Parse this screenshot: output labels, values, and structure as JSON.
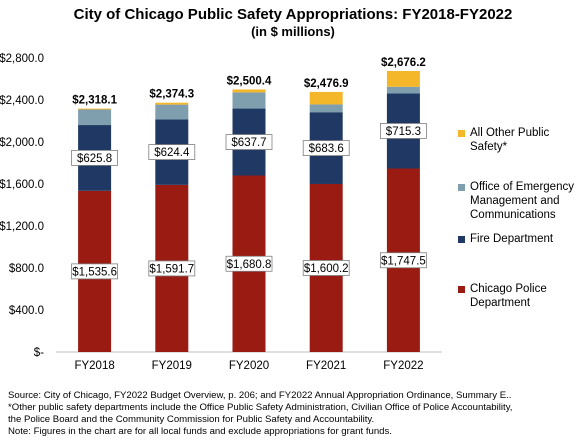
{
  "chart_data": {
    "type": "bar",
    "stacked": true,
    "title": "City of Chicago Public Safety Appropriations: FY2018-FY2022",
    "subtitle": "(in $ millions)",
    "categories": [
      "FY2018",
      "FY2019",
      "FY2020",
      "FY2021",
      "FY2022"
    ],
    "series": [
      {
        "name": "Chicago Police Department",
        "color": "#991B12",
        "values": [
          1535.6,
          1591.7,
          1680.8,
          1600.2,
          1747.5
        ],
        "labels": [
          "$1,535.6",
          "$1,591.7",
          "$1,680.8",
          "$1,600.2",
          "$1,747.5"
        ]
      },
      {
        "name": "Fire Department",
        "color": "#1F3864",
        "values": [
          625.8,
          624.4,
          637.7,
          683.6,
          715.3
        ],
        "labels": [
          "$625.8",
          "$624.4",
          "$637.7",
          "$683.6",
          "$715.3"
        ]
      },
      {
        "name": "Office of Emergency Management and Communications",
        "color": "#7F9FAE",
        "values": [
          148.0,
          140.0,
          154.0,
          74.0,
          63.0
        ]
      },
      {
        "name": "All Other Public Safety*",
        "color": "#F5B72A",
        "values": [
          8.7,
          18.2,
          27.9,
          119.1,
          150.4
        ]
      }
    ],
    "totals": [
      2318.1,
      2374.3,
      2500.4,
      2476.9,
      2676.2
    ],
    "total_labels": [
      "$2,318.1",
      "$2,374.3",
      "$2,500.4",
      "$2,476.9",
      "$2,676.2"
    ],
    "ylim": [
      0,
      2800
    ],
    "yticks": [
      0,
      400,
      800,
      1200,
      1600,
      2000,
      2400,
      2800
    ],
    "ytick_labels": [
      "$-",
      "$400.0",
      "$800.0",
      "$1,200.0",
      "$1,600.0",
      "$2,000.0",
      "$2,400.0",
      "$2,800.0"
    ],
    "legend_position": "right",
    "legend_order": [
      3,
      2,
      1,
      0
    ],
    "legend_labels": [
      [
        "All Other Public",
        "Safety*"
      ],
      [
        "Office of Emergency",
        "Management and",
        "Communications"
      ],
      [
        "Fire Department"
      ],
      [
        "Chicago Police",
        "Department"
      ]
    ],
    "grid": false
  },
  "notes": [
    "Source: City of Chicago, FY2022 Budget Overview, p. 206; and FY2022 Annual Appropriation Ordinance, Summary   E..",
    "*Other public safety departments include the Office Public Safety Administration, Civilian  Office of Police Accountability,",
    "the Police Board and the Community  Commission  for Public Safety and Accountability.",
    "Note: Figures in the chart are for all local funds and exclude appropriations for grant funds."
  ]
}
